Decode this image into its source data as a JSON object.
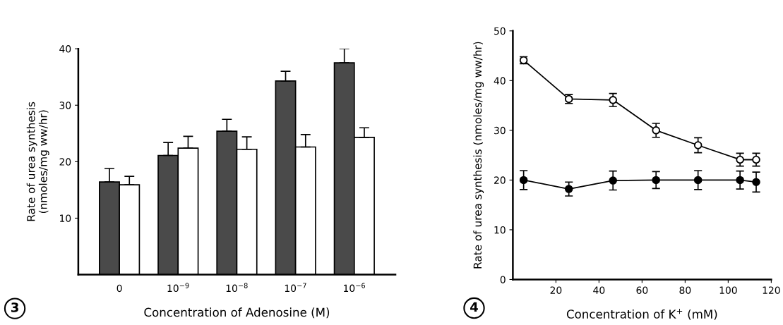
{
  "chart_data": [
    {
      "type": "bar",
      "xlabel": "Concentration of Adenosine (M)",
      "ylabel": "Rate of urea synthesis\n(nmoles/mg ww/hr)",
      "annotations": [
        "3"
      ],
      "categories": [
        "0",
        "10$^{−9}$",
        "10$^{−8}$",
        "10$^{−7}$",
        "10$^{−6}$"
      ],
      "ylim": [
        0,
        40
      ],
      "yticks": [
        10,
        20,
        30,
        40
      ],
      "grid": false,
      "legend": false,
      "series": [
        {
          "color": "#4a4a4a",
          "values": [
            16.4,
            21.1,
            25.4,
            34.3,
            37.5
          ],
          "errors": [
            [
              16.4,
              18.8
            ],
            [
              21.1,
              23.4
            ],
            [
              25.4,
              27.5
            ],
            [
              34.3,
              36.0
            ],
            [
              37.5,
              40.0
            ]
          ]
        },
        {
          "color": "#ffffff",
          "values": [
            15.9,
            22.4,
            22.2,
            22.6,
            24.3
          ],
          "errors": [
            [
              15.9,
              17.4
            ],
            [
              22.4,
              24.5
            ],
            [
              22.2,
              24.4
            ],
            [
              22.6,
              24.8
            ],
            [
              24.3,
              26.0
            ]
          ]
        }
      ]
    },
    {
      "type": "line",
      "xlabel": "Concentration of K$^{+}$ (mM)",
      "ylabel": "Rate of urea synthesis (nmoles/mg ww/hr)",
      "annotations": [
        "4"
      ],
      "xlim": [
        0,
        120
      ],
      "xticks": [
        20,
        40,
        60,
        80,
        100,
        120
      ],
      "ylim": [
        0,
        50
      ],
      "yticks": [
        0,
        10,
        20,
        30,
        40,
        50
      ],
      "grid": false,
      "legend": false,
      "marker": "circle",
      "line_style": "solid",
      "x": [
        5,
        26,
        46.5,
        66.5,
        86,
        105.5,
        113
      ],
      "series": [
        {
          "color": "#ffffff",
          "values": [
            44.1,
            36.3,
            36.1,
            30.0,
            27.0,
            24.1,
            24.1
          ],
          "errors": [
            0.7,
            0.9,
            1.3,
            1.4,
            1.5,
            1.3,
            1.3
          ]
        },
        {
          "color": "#000000",
          "values": [
            20.0,
            18.2,
            19.9,
            20.0,
            20.0,
            20.0,
            19.6
          ],
          "errors": [
            1.9,
            1.4,
            1.9,
            1.7,
            1.9,
            1.8,
            2.0
          ]
        }
      ]
    }
  ]
}
